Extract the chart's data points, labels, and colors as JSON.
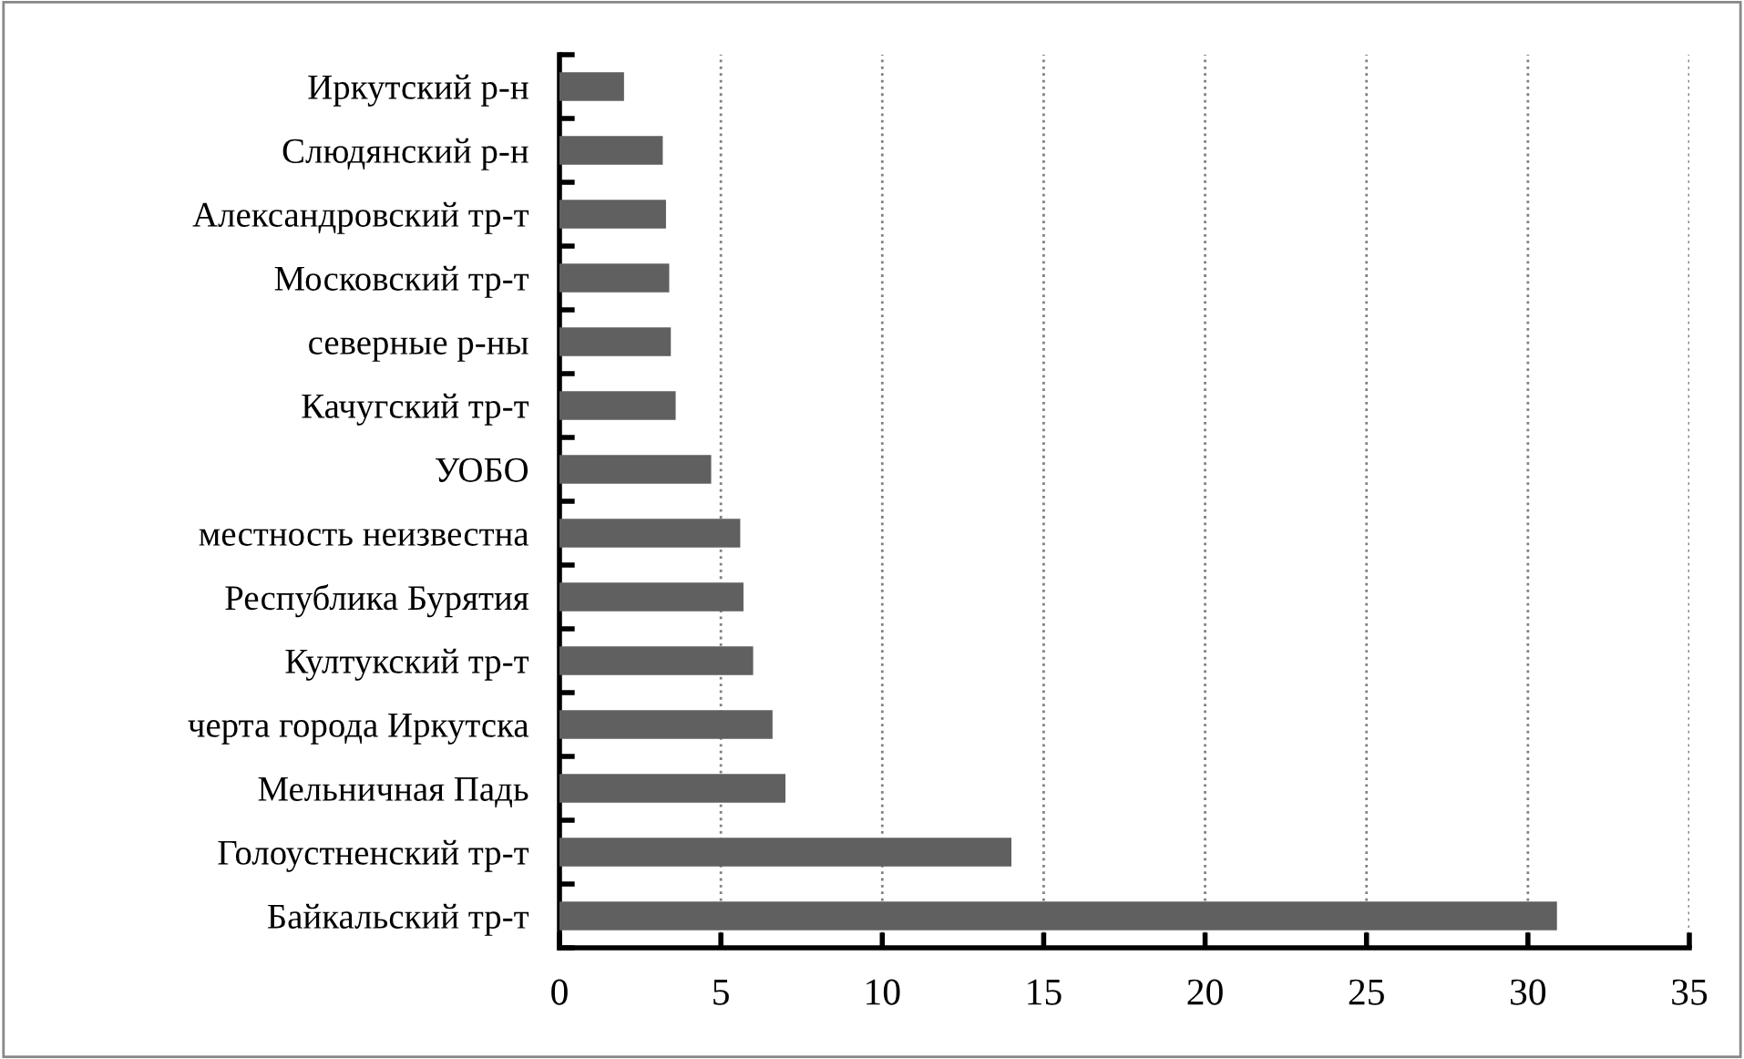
{
  "chart_data": {
    "type": "bar",
    "orientation": "horizontal",
    "categories": [
      "Иркутский р-н",
      "Слюдянский р-н",
      "Александровский тр-т",
      "Московский тр-т",
      "северные р-ны",
      "Качугский тр-т",
      "УОБО",
      "местность неизвестна",
      "Республика Бурятия",
      "Култукский тр-т",
      "черта города Иркутска",
      "Мельничная Падь",
      "Голоустненский тр-т",
      "Байкальский тр-т"
    ],
    "values": [
      2.0,
      3.2,
      3.3,
      3.4,
      3.45,
      3.6,
      4.7,
      5.6,
      5.7,
      6.0,
      6.6,
      7.0,
      14.0,
      30.9
    ],
    "color": "#606060",
    "xlim": [
      0,
      35
    ],
    "xticks": [
      0,
      5,
      10,
      15,
      20,
      25,
      30,
      35
    ],
    "grid": "x"
  }
}
